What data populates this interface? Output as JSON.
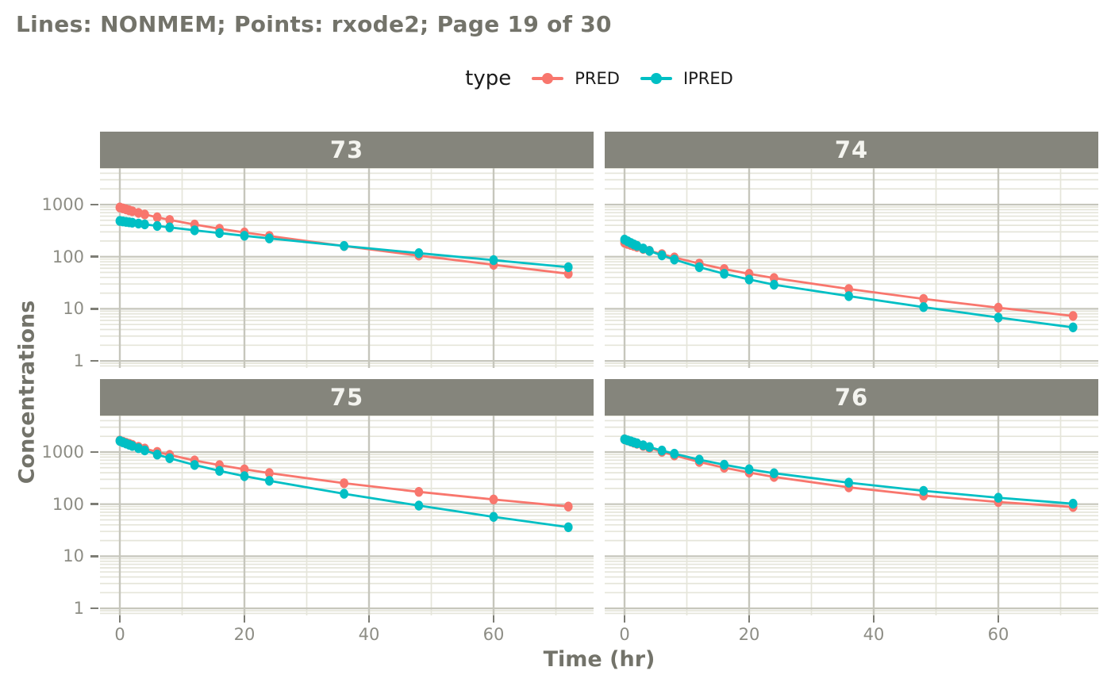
{
  "title": "Lines: NONMEM; Points: rxode2; Page 19 of 30",
  "legend": {
    "title": "type",
    "items": [
      {
        "label": "PRED",
        "color": "#F8766D"
      },
      {
        "label": "IPRED",
        "color": "#00BFC4"
      }
    ]
  },
  "axes": {
    "xlabel": "Time (hr)",
    "ylabel": "Concentrations",
    "xticks": [
      0,
      20,
      40,
      60
    ],
    "yticks": [
      1000,
      100,
      10,
      1
    ]
  },
  "colors": {
    "title_text": "#73736a",
    "tick_text": "#8d8d85",
    "tick_mark": "#7d7d75",
    "strip_bg": "#85857c",
    "strip_text": "#f4f4ef",
    "grid_major": "#c6c6bc",
    "grid_minor": "#e5e5da",
    "pred": "#F8766D",
    "ipred": "#00BFC4"
  },
  "chart_data": [
    {
      "type": "line",
      "markers": true,
      "facet": "73",
      "xlabel": "Time (hr)",
      "ylabel": "Concentrations",
      "yscale": "log10",
      "xlim": [
        -3.2,
        76
      ],
      "ylim": [
        0.73,
        5000
      ],
      "xticks": [
        0,
        20,
        40,
        60
      ],
      "yticks": [
        1,
        10,
        100,
        1000
      ],
      "legend_position": "top",
      "x": [
        0,
        0.5,
        1,
        1.5,
        2,
        3,
        4,
        6,
        8,
        12,
        16,
        20,
        24,
        36,
        48,
        60,
        72
      ],
      "series": [
        {
          "name": "PRED",
          "color": "#F8766D",
          "values": [
            880,
            845,
            810,
            778,
            748,
            695,
            648,
            570,
            508,
            415,
            345,
            292,
            250,
            160,
            105,
            70,
            47
          ]
        },
        {
          "name": "IPRED",
          "color": "#00BFC4",
          "values": [
            485,
            475,
            466,
            457,
            449,
            433,
            418,
            390,
            365,
            321,
            284,
            252,
            225,
            161,
            117,
            86,
            63
          ]
        }
      ]
    },
    {
      "type": "line",
      "markers": true,
      "facet": "74",
      "xlabel": "Time (hr)",
      "ylabel": "Concentrations",
      "yscale": "log10",
      "xlim": [
        -3.2,
        76
      ],
      "ylim": [
        0.73,
        5000
      ],
      "xticks": [
        0,
        20,
        40,
        60
      ],
      "yticks": [
        1,
        10,
        100,
        1000
      ],
      "legend_position": "top",
      "x": [
        0,
        0.5,
        1,
        1.5,
        2,
        3,
        4,
        6,
        8,
        12,
        16,
        20,
        24,
        36,
        48,
        60,
        72
      ],
      "series": [
        {
          "name": "PRED",
          "color": "#F8766D",
          "values": [
            185,
            176,
            168,
            161,
            154,
            141,
            130,
            112,
            97,
            74,
            58,
            47,
            39,
            24,
            15.5,
            10.5,
            7.3
          ]
        },
        {
          "name": "IPRED",
          "color": "#00BFC4",
          "values": [
            213,
            198,
            184,
            172,
            162,
            144,
            129,
            106,
            88,
            63,
            47,
            36.5,
            29,
            17.5,
            10.8,
            6.8,
            4.4
          ]
        }
      ]
    },
    {
      "type": "line",
      "markers": true,
      "facet": "75",
      "xlabel": "Time (hr)",
      "ylabel": "Concentrations",
      "yscale": "log10",
      "xlim": [
        -3.2,
        76
      ],
      "ylim": [
        0.73,
        5000
      ],
      "xticks": [
        0,
        20,
        40,
        60
      ],
      "yticks": [
        1,
        10,
        100,
        1000
      ],
      "legend_position": "top",
      "x": [
        0,
        0.5,
        1,
        1.5,
        2,
        3,
        4,
        6,
        8,
        12,
        16,
        20,
        24,
        36,
        48,
        60,
        72
      ],
      "series": [
        {
          "name": "PRED",
          "color": "#F8766D",
          "values": [
            1660,
            1580,
            1505,
            1437,
            1375,
            1262,
            1165,
            1005,
            880,
            690,
            560,
            465,
            395,
            252,
            172,
            123,
            90
          ]
        },
        {
          "name": "IPRED",
          "color": "#00BFC4",
          "values": [
            1630,
            1540,
            1457,
            1380,
            1310,
            1185,
            1075,
            895,
            760,
            565,
            435,
            345,
            280,
            158,
            94,
            57,
            36
          ]
        }
      ]
    },
    {
      "type": "line",
      "markers": true,
      "facet": "76",
      "xlabel": "Time (hr)",
      "ylabel": "Concentrations",
      "yscale": "log10",
      "xlim": [
        -3.2,
        76
      ],
      "ylim": [
        0.73,
        5000
      ],
      "xticks": [
        0,
        20,
        40,
        60
      ],
      "yticks": [
        1,
        10,
        100,
        1000
      ],
      "legend_position": "top",
      "x": [
        0,
        0.5,
        1,
        1.5,
        2,
        3,
        4,
        6,
        8,
        12,
        16,
        20,
        24,
        36,
        48,
        60,
        72
      ],
      "series": [
        {
          "name": "PRED",
          "color": "#F8766D",
          "values": [
            1760,
            1672,
            1590,
            1514,
            1443,
            1315,
            1202,
            1010,
            860,
            645,
            500,
            403,
            333,
            210,
            146,
            110,
            88
          ]
        },
        {
          "name": "IPRED",
          "color": "#00BFC4",
          "values": [
            1755,
            1676,
            1602,
            1533,
            1469,
            1352,
            1248,
            1070,
            928,
            715,
            570,
            467,
            392,
            258,
            180,
            133,
            102
          ]
        }
      ]
    }
  ]
}
